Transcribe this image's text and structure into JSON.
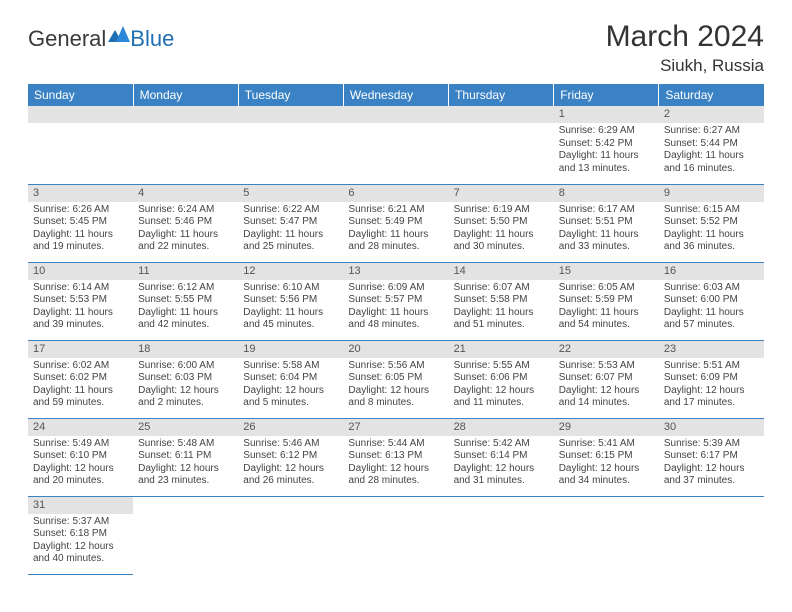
{
  "logo": {
    "part1": "General",
    "part2": "Blue"
  },
  "title": "March 2024",
  "location": "Siukh, Russia",
  "columns": [
    "Sunday",
    "Monday",
    "Tuesday",
    "Wednesday",
    "Thursday",
    "Friday",
    "Saturday"
  ],
  "header_bg": "#3a82c4",
  "header_fg": "#ffffff",
  "daynum_bg": "#e3e3e3",
  "border_color": "#3a82c4",
  "weeks": [
    [
      null,
      null,
      null,
      null,
      null,
      {
        "n": "1",
        "sr": "Sunrise: 6:29 AM",
        "ss": "Sunset: 5:42 PM",
        "d1": "Daylight: 11 hours",
        "d2": "and 13 minutes."
      },
      {
        "n": "2",
        "sr": "Sunrise: 6:27 AM",
        "ss": "Sunset: 5:44 PM",
        "d1": "Daylight: 11 hours",
        "d2": "and 16 minutes."
      }
    ],
    [
      {
        "n": "3",
        "sr": "Sunrise: 6:26 AM",
        "ss": "Sunset: 5:45 PM",
        "d1": "Daylight: 11 hours",
        "d2": "and 19 minutes."
      },
      {
        "n": "4",
        "sr": "Sunrise: 6:24 AM",
        "ss": "Sunset: 5:46 PM",
        "d1": "Daylight: 11 hours",
        "d2": "and 22 minutes."
      },
      {
        "n": "5",
        "sr": "Sunrise: 6:22 AM",
        "ss": "Sunset: 5:47 PM",
        "d1": "Daylight: 11 hours",
        "d2": "and 25 minutes."
      },
      {
        "n": "6",
        "sr": "Sunrise: 6:21 AM",
        "ss": "Sunset: 5:49 PM",
        "d1": "Daylight: 11 hours",
        "d2": "and 28 minutes."
      },
      {
        "n": "7",
        "sr": "Sunrise: 6:19 AM",
        "ss": "Sunset: 5:50 PM",
        "d1": "Daylight: 11 hours",
        "d2": "and 30 minutes."
      },
      {
        "n": "8",
        "sr": "Sunrise: 6:17 AM",
        "ss": "Sunset: 5:51 PM",
        "d1": "Daylight: 11 hours",
        "d2": "and 33 minutes."
      },
      {
        "n": "9",
        "sr": "Sunrise: 6:15 AM",
        "ss": "Sunset: 5:52 PM",
        "d1": "Daylight: 11 hours",
        "d2": "and 36 minutes."
      }
    ],
    [
      {
        "n": "10",
        "sr": "Sunrise: 6:14 AM",
        "ss": "Sunset: 5:53 PM",
        "d1": "Daylight: 11 hours",
        "d2": "and 39 minutes."
      },
      {
        "n": "11",
        "sr": "Sunrise: 6:12 AM",
        "ss": "Sunset: 5:55 PM",
        "d1": "Daylight: 11 hours",
        "d2": "and 42 minutes."
      },
      {
        "n": "12",
        "sr": "Sunrise: 6:10 AM",
        "ss": "Sunset: 5:56 PM",
        "d1": "Daylight: 11 hours",
        "d2": "and 45 minutes."
      },
      {
        "n": "13",
        "sr": "Sunrise: 6:09 AM",
        "ss": "Sunset: 5:57 PM",
        "d1": "Daylight: 11 hours",
        "d2": "and 48 minutes."
      },
      {
        "n": "14",
        "sr": "Sunrise: 6:07 AM",
        "ss": "Sunset: 5:58 PM",
        "d1": "Daylight: 11 hours",
        "d2": "and 51 minutes."
      },
      {
        "n": "15",
        "sr": "Sunrise: 6:05 AM",
        "ss": "Sunset: 5:59 PM",
        "d1": "Daylight: 11 hours",
        "d2": "and 54 minutes."
      },
      {
        "n": "16",
        "sr": "Sunrise: 6:03 AM",
        "ss": "Sunset: 6:00 PM",
        "d1": "Daylight: 11 hours",
        "d2": "and 57 minutes."
      }
    ],
    [
      {
        "n": "17",
        "sr": "Sunrise: 6:02 AM",
        "ss": "Sunset: 6:02 PM",
        "d1": "Daylight: 11 hours",
        "d2": "and 59 minutes."
      },
      {
        "n": "18",
        "sr": "Sunrise: 6:00 AM",
        "ss": "Sunset: 6:03 PM",
        "d1": "Daylight: 12 hours",
        "d2": "and 2 minutes."
      },
      {
        "n": "19",
        "sr": "Sunrise: 5:58 AM",
        "ss": "Sunset: 6:04 PM",
        "d1": "Daylight: 12 hours",
        "d2": "and 5 minutes."
      },
      {
        "n": "20",
        "sr": "Sunrise: 5:56 AM",
        "ss": "Sunset: 6:05 PM",
        "d1": "Daylight: 12 hours",
        "d2": "and 8 minutes."
      },
      {
        "n": "21",
        "sr": "Sunrise: 5:55 AM",
        "ss": "Sunset: 6:06 PM",
        "d1": "Daylight: 12 hours",
        "d2": "and 11 minutes."
      },
      {
        "n": "22",
        "sr": "Sunrise: 5:53 AM",
        "ss": "Sunset: 6:07 PM",
        "d1": "Daylight: 12 hours",
        "d2": "and 14 minutes."
      },
      {
        "n": "23",
        "sr": "Sunrise: 5:51 AM",
        "ss": "Sunset: 6:09 PM",
        "d1": "Daylight: 12 hours",
        "d2": "and 17 minutes."
      }
    ],
    [
      {
        "n": "24",
        "sr": "Sunrise: 5:49 AM",
        "ss": "Sunset: 6:10 PM",
        "d1": "Daylight: 12 hours",
        "d2": "and 20 minutes."
      },
      {
        "n": "25",
        "sr": "Sunrise: 5:48 AM",
        "ss": "Sunset: 6:11 PM",
        "d1": "Daylight: 12 hours",
        "d2": "and 23 minutes."
      },
      {
        "n": "26",
        "sr": "Sunrise: 5:46 AM",
        "ss": "Sunset: 6:12 PM",
        "d1": "Daylight: 12 hours",
        "d2": "and 26 minutes."
      },
      {
        "n": "27",
        "sr": "Sunrise: 5:44 AM",
        "ss": "Sunset: 6:13 PM",
        "d1": "Daylight: 12 hours",
        "d2": "and 28 minutes."
      },
      {
        "n": "28",
        "sr": "Sunrise: 5:42 AM",
        "ss": "Sunset: 6:14 PM",
        "d1": "Daylight: 12 hours",
        "d2": "and 31 minutes."
      },
      {
        "n": "29",
        "sr": "Sunrise: 5:41 AM",
        "ss": "Sunset: 6:15 PM",
        "d1": "Daylight: 12 hours",
        "d2": "and 34 minutes."
      },
      {
        "n": "30",
        "sr": "Sunrise: 5:39 AM",
        "ss": "Sunset: 6:17 PM",
        "d1": "Daylight: 12 hours",
        "d2": "and 37 minutes."
      }
    ],
    [
      {
        "n": "31",
        "sr": "Sunrise: 5:37 AM",
        "ss": "Sunset: 6:18 PM",
        "d1": "Daylight: 12 hours",
        "d2": "and 40 minutes."
      },
      null,
      null,
      null,
      null,
      null,
      null
    ]
  ]
}
